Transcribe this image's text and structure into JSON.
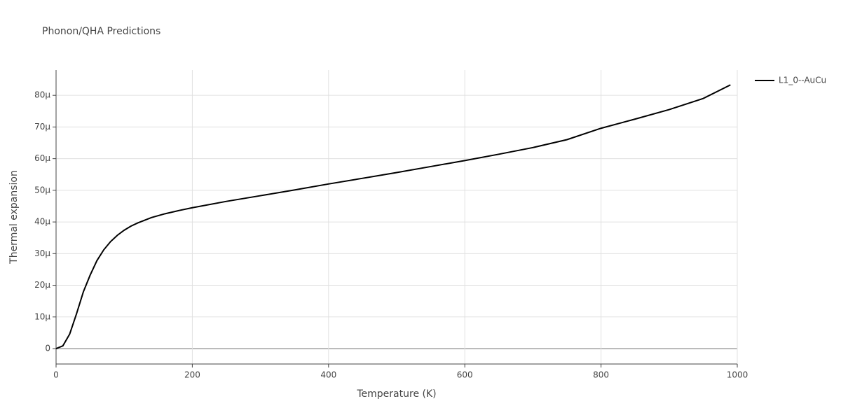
{
  "chart_data": {
    "type": "line",
    "title": "Phonon/QHA Predictions",
    "x_label": "Temperature (K)",
    "y_label": "Thermal expansion",
    "xlim": [
      0,
      1000
    ],
    "xticks": [
      0,
      200,
      400,
      600,
      800,
      1000
    ],
    "ylim": [
      -4.86e-06,
      8.8e-05
    ],
    "yticks": [
      0,
      {
        "value": 1e-05,
        "label": "10μ"
      },
      {
        "value": 2e-05,
        "label": "20μ"
      },
      {
        "value": 3e-05,
        "label": "30μ"
      },
      {
        "value": 4e-05,
        "label": "40μ"
      },
      {
        "value": 5e-05,
        "label": "50μ"
      },
      {
        "value": 6e-05,
        "label": "60μ"
      },
      {
        "value": 7e-05,
        "label": "70μ"
      },
      {
        "value": 8e-05,
        "label": "80μ"
      }
    ],
    "grid": true,
    "legend": "right",
    "x": [
      0,
      10,
      20,
      30,
      40,
      50,
      60,
      70,
      80,
      90,
      100,
      110,
      120,
      140,
      160,
      180,
      200,
      250,
      300,
      350,
      400,
      450,
      500,
      550,
      600,
      650,
      700,
      750,
      800,
      850,
      900,
      950,
      990
    ],
    "series": [
      {
        "name": "L1_0--AuCu",
        "color": "#000000",
        "values": [
          0,
          8.8e-07,
          4.6e-06,
          1.1e-05,
          1.79e-05,
          2.32e-05,
          2.78e-05,
          3.12e-05,
          3.38e-05,
          3.58e-05,
          3.74e-05,
          3.87e-05,
          3.97e-05,
          4.14e-05,
          4.26e-05,
          4.36e-05,
          4.45e-05,
          4.65e-05,
          4.83e-05,
          5.01e-05,
          5.2e-05,
          5.38e-05,
          5.56e-05,
          5.75e-05,
          5.94e-05,
          6.14e-05,
          6.35e-05,
          6.6e-05,
          6.96e-05,
          7.25e-05,
          7.55e-05,
          7.9e-05,
          8.33e-05
        ]
      }
    ]
  }
}
